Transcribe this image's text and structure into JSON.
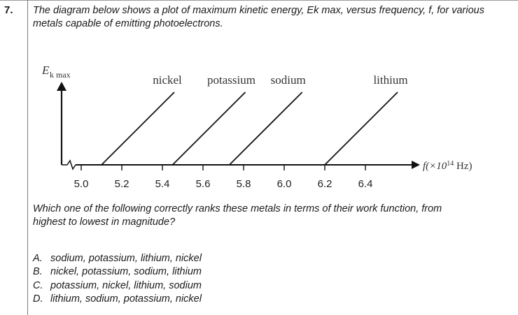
{
  "question": {
    "number": "7.",
    "stem_line1": "The diagram below shows a plot of maximum kinetic energy, Ek max, versus frequency, f, for various",
    "stem_line2": "metals capable of emitting photoelectrons.",
    "prompt_line1": "Which one of the following correctly ranks these metals in terms of their work function, from",
    "prompt_line2": "highest to lowest in magnitude?",
    "options": [
      {
        "letter": "A.",
        "text": "sodium, potassium, lithium, nickel"
      },
      {
        "letter": "B.",
        "text": "nickel, potassium, sodium, lithium"
      },
      {
        "letter": "C.",
        "text": "potassium, nickel, lithium, sodium"
      },
      {
        "letter": "D.",
        "text": "lithium, sodium, potassium, nickel"
      }
    ]
  },
  "chart_data": {
    "type": "line",
    "ylabel_main": "E",
    "ylabel_sub": "k max",
    "xlabel": "f(×10",
    "xlabel_exp": "14",
    "xlabel_unit": " Hz)",
    "x_ticks": [
      "5.0",
      "5.2",
      "5.4",
      "5.6",
      "5.8",
      "6.0",
      "6.2",
      "6.4"
    ],
    "series": [
      {
        "name": "nickel",
        "threshold_frequency": 5.1
      },
      {
        "name": "potassium",
        "threshold_frequency": 5.45
      },
      {
        "name": "sodium",
        "threshold_frequency": 5.73
      },
      {
        "name": "lithium",
        "threshold_frequency": 6.2
      }
    ]
  }
}
